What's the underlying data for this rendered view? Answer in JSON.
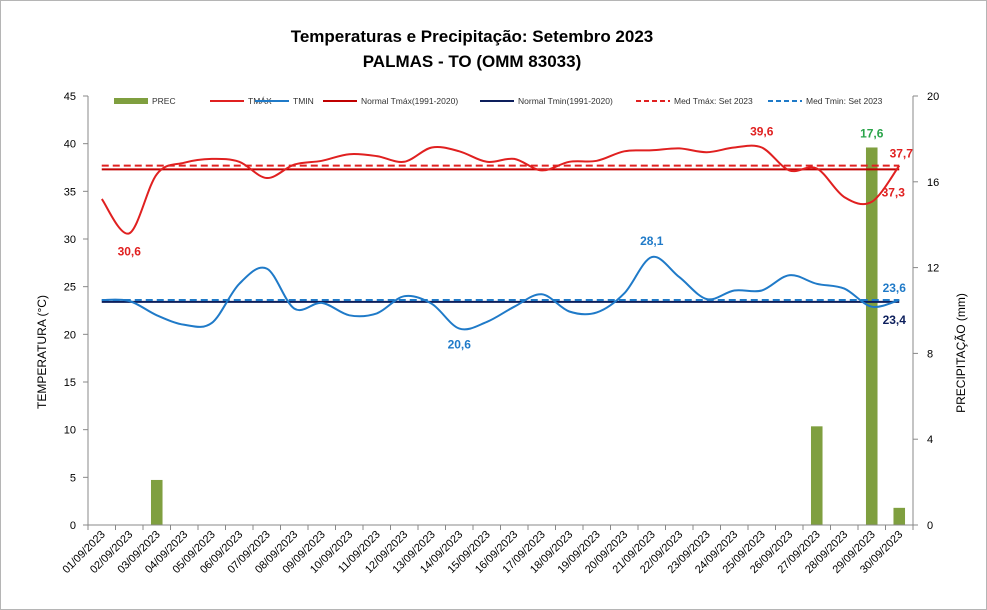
{
  "chart_data": {
    "type": "line+bar",
    "title": "Temperaturas e Precipitação: Setembro 2023",
    "subtitle": "PALMAS - TO (OMM 83033)",
    "ylabel": "TEMPERATURA  (°C)",
    "y2label": "PRECIPITAÇÃO  (mm)",
    "ylim": [
      0,
      45
    ],
    "y2lim": [
      0,
      20
    ],
    "yticks": [
      "0",
      "5",
      "10",
      "15",
      "20",
      "25",
      "30",
      "35",
      "40",
      "45"
    ],
    "y2ticks": [
      "0",
      "4",
      "8",
      "12",
      "16",
      "20"
    ],
    "categories": [
      "01/09/2023",
      "02/09/2023",
      "03/09/2023",
      "04/09/2023",
      "05/09/2023",
      "06/09/2023",
      "07/09/2023",
      "08/09/2023",
      "09/09/2023",
      "10/09/2023",
      "11/09/2023",
      "12/09/2023",
      "13/09/2023",
      "14/09/2023",
      "15/09/2023",
      "16/09/2023",
      "17/09/2023",
      "18/09/2023",
      "19/09/2023",
      "20/09/2023",
      "21/09/2023",
      "22/09/2023",
      "23/09/2023",
      "24/09/2023",
      "25/09/2023",
      "26/09/2023",
      "27/09/2023",
      "28/09/2023",
      "29/09/2023",
      "30/09/2023"
    ],
    "legend": [
      {
        "name": "PREC",
        "color": "#7f9f3f",
        "style": "bar"
      },
      {
        "name": "TMÁX",
        "color": "#e02020",
        "style": "solid"
      },
      {
        "name": "TMIN",
        "color": "#1f7ac8",
        "style": "solid"
      },
      {
        "name": "Normal Tmáx(1991-2020)",
        "color": "#c00000",
        "style": "solid"
      },
      {
        "name": "Normal Tmin(1991-2020)",
        "color": "#0d1f5c",
        "style": "solid"
      },
      {
        "name": "Med Tmáx: Set 2023",
        "color": "#e02020",
        "style": "dashed"
      },
      {
        "name": "Med Tmin: Set 2023",
        "color": "#1f7ac8",
        "style": "dashed"
      }
    ],
    "series": {
      "tmax": [
        34.2,
        30.6,
        36.8,
        38.0,
        38.4,
        38.1,
        36.4,
        37.8,
        38.2,
        38.9,
        38.7,
        38.1,
        39.6,
        39.2,
        38.1,
        38.4,
        37.2,
        38.1,
        38.2,
        39.2,
        39.3,
        39.5,
        39.1,
        39.6,
        39.6,
        37.2,
        37.4,
        34.4,
        33.9,
        37.7
      ],
      "tmin": [
        23.6,
        23.5,
        22.0,
        21.0,
        21.2,
        25.3,
        26.9,
        22.7,
        23.3,
        22.0,
        22.2,
        24.0,
        23.2,
        20.6,
        21.3,
        22.9,
        24.2,
        22.4,
        22.3,
        24.3,
        28.1,
        26.0,
        23.7,
        24.6,
        24.6,
        26.2,
        25.3,
        24.8,
        22.9,
        23.6
      ],
      "prec": [
        0,
        0,
        2.1,
        0,
        0,
        0,
        0,
        0,
        0,
        0,
        0,
        0,
        0,
        0,
        0,
        0,
        0,
        0,
        0,
        0,
        0,
        0,
        0,
        0,
        0,
        0,
        4.6,
        0,
        17.6,
        0.8
      ],
      "normal_tmax": 37.3,
      "normal_tmin": 23.4,
      "med_tmax": 37.7,
      "med_tmin": 23.6
    },
    "annotations": [
      {
        "text": "30,6",
        "series": "tmax",
        "day": 2,
        "color": "#e02020"
      },
      {
        "text": "39,6",
        "series": "tmax",
        "day": 25,
        "color": "#e02020"
      },
      {
        "text": "37,7",
        "series": "med_tmax",
        "day": 30,
        "color": "#e02020"
      },
      {
        "text": "37,3",
        "series": "normal_tmax",
        "day": 30,
        "color": "#e02020"
      },
      {
        "text": "28,1",
        "series": "tmin",
        "day": 21,
        "color": "#1f7ac8"
      },
      {
        "text": "20,6",
        "series": "tmin",
        "day": 14,
        "color": "#1f7ac8"
      },
      {
        "text": "23,6",
        "series": "med_tmin",
        "day": 30,
        "color": "#1f7ac8"
      },
      {
        "text": "23,4",
        "series": "normal_tmin",
        "day": 30,
        "color": "#0d1f5c"
      },
      {
        "text": "17,6",
        "series": "prec",
        "day": 29,
        "color": "#2aa44a"
      }
    ]
  }
}
